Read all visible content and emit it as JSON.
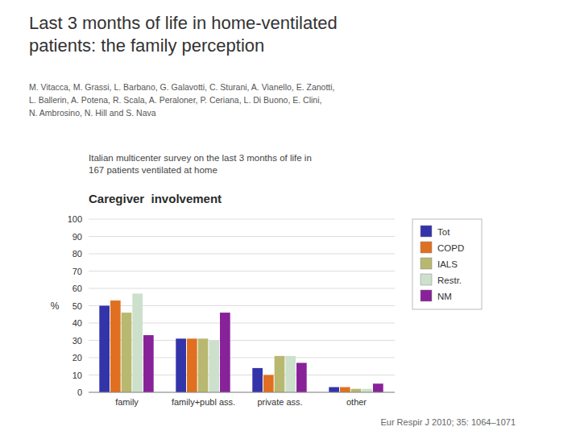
{
  "chart_data": {
    "type": "bar",
    "title": "Last 3 months of life in home-ventilated\npatients: the family perception",
    "subtitle": "Italian multicenter survey on the last 3 months of life in\n167 patients ventilated at home",
    "annotations": [
      "M. Vitacca, M. Grassi, L. Barbano, G. Galavotti, C. Sturani, A. Vianello, E. Zanotti,\nL. Ballerin, A. Potena, R. Scala, A. Peraloner, P. Ceriana, L. Di Buono, E. Clini,\nN. Ambrosino, N. Hill and S. Nava",
      "Caregiver  involvement",
      "Eur Respir J 2010; 35: 1064–1071"
    ],
    "ylabel": "%",
    "categories": [
      "family",
      "family+publ ass.",
      "private ass.",
      "other"
    ],
    "series": [
      {
        "name": "Tot",
        "color": "#3333aa",
        "values": [
          50,
          31,
          14,
          3
        ]
      },
      {
        "name": "COPD",
        "color": "#e07020",
        "values": [
          53,
          31,
          10,
          3
        ]
      },
      {
        "name": "IALS",
        "color": "#b8b870",
        "values": [
          46,
          31,
          21,
          2
        ]
      },
      {
        "name": "Restr.",
        "color": "#cce0cc",
        "values": [
          57,
          30,
          21,
          2
        ]
      },
      {
        "name": "NM",
        "color": "#882299",
        "values": [
          33,
          46,
          17,
          5
        ]
      }
    ],
    "ylim": [
      0,
      100
    ],
    "yticks": [
      0,
      10,
      20,
      30,
      40,
      50,
      60,
      70,
      80,
      90,
      100
    ],
    "grid": true,
    "legend": "right"
  }
}
